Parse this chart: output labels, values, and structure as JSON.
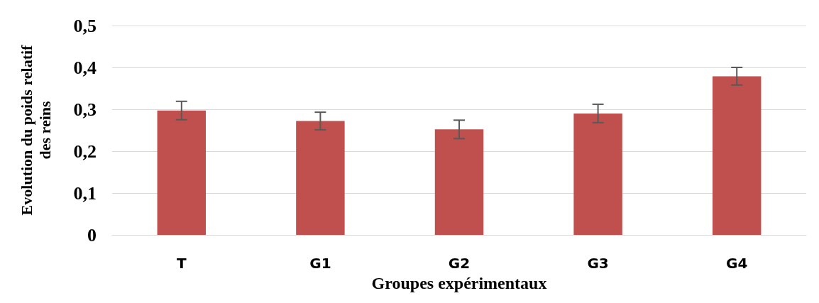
{
  "chart_data": {
    "type": "bar",
    "xlabel": "Groupes expérimentaux",
    "ylabel": "Evolution du poids relatif\ndes reins",
    "categories": [
      "T",
      "G1",
      "G2",
      "G3",
      "G4"
    ],
    "values": [
      0.297,
      0.272,
      0.252,
      0.29,
      0.379
    ],
    "errors": [
      0.022,
      0.021,
      0.022,
      0.022,
      0.021
    ],
    "color": "#c0504d",
    "ylim": [
      0,
      0.5
    ],
    "yticks": [
      {
        "value": 0,
        "label": "0"
      },
      {
        "value": 0.1,
        "label": "0,1"
      },
      {
        "value": 0.2,
        "label": "0,2"
      },
      {
        "value": 0.3,
        "label": "0,3"
      },
      {
        "value": 0.4,
        "label": "0,4"
      },
      {
        "value": 0.5,
        "label": "0,5"
      }
    ],
    "grid": "y"
  }
}
